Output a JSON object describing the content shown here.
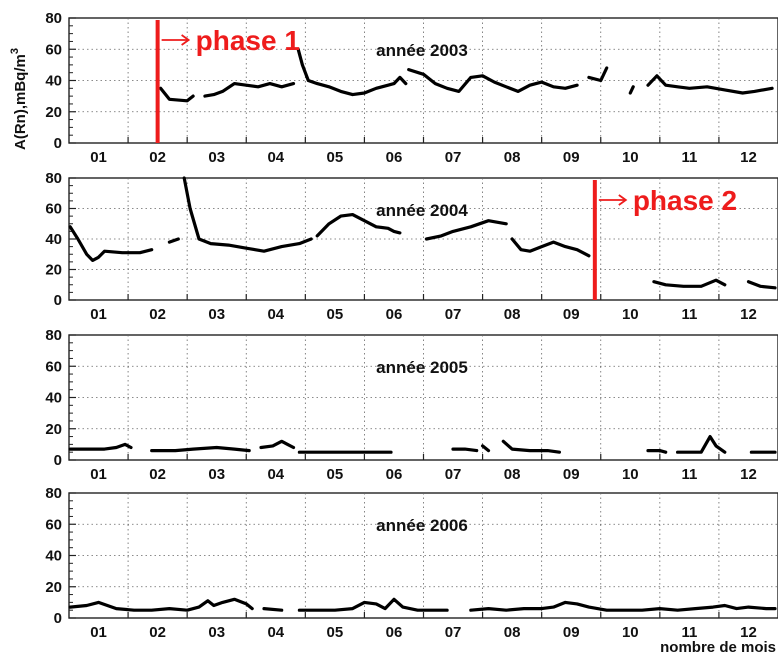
{
  "figure": {
    "ylabel": "A(Rn),mBq/m",
    "ylabel_sup": "3",
    "xlabel": "nombre de mois",
    "colors": {
      "data": "#000000",
      "phase": "#ee1c1c",
      "grid": "#666666",
      "text": "#111111"
    }
  },
  "chart_data": [
    {
      "type": "line",
      "title": "année 2003",
      "ylabel": "A(Rn),mBq/m3",
      "ylim": [
        0,
        80
      ],
      "yticks": [
        0,
        20,
        40,
        60,
        80
      ],
      "xlim": [
        0.5,
        12.5
      ],
      "categories": [
        "01",
        "02",
        "03",
        "04",
        "05",
        "06",
        "07",
        "08",
        "09",
        "10",
        "11",
        "12"
      ],
      "grid": true,
      "marker": {
        "label": "phase  1",
        "month": 2.0
      },
      "series": [
        {
          "values": [
            [
              2.05,
              35
            ],
            [
              2.2,
              28
            ],
            [
              2.5,
              27
            ],
            [
              2.6,
              30
            ]
          ]
        },
        {
          "values": [
            [
              2.8,
              30
            ],
            [
              2.95,
              31
            ],
            [
              3.1,
              33
            ],
            [
              3.3,
              38
            ],
            [
              3.5,
              37
            ],
            [
              3.7,
              36
            ],
            [
              3.9,
              38
            ],
            [
              4.1,
              36
            ],
            [
              4.3,
              38
            ]
          ]
        },
        {
          "values": [
            [
              4.38,
              60
            ],
            [
              4.45,
              50
            ],
            [
              4.55,
              40
            ],
            [
              4.7,
              38
            ],
            [
              4.9,
              36
            ],
            [
              5.1,
              33
            ],
            [
              5.3,
              31
            ],
            [
              5.5,
              32
            ],
            [
              5.7,
              35
            ],
            [
              5.9,
              37
            ],
            [
              6.0,
              38
            ],
            [
              6.1,
              42
            ],
            [
              6.2,
              38
            ]
          ]
        },
        {
          "values": [
            [
              6.25,
              47
            ],
            [
              6.5,
              44
            ],
            [
              6.7,
              38
            ],
            [
              6.9,
              35
            ],
            [
              7.1,
              33
            ],
            [
              7.3,
              42
            ],
            [
              7.5,
              43
            ],
            [
              7.7,
              39
            ],
            [
              7.9,
              36
            ],
            [
              8.1,
              33
            ],
            [
              8.3,
              37
            ],
            [
              8.5,
              39
            ],
            [
              8.7,
              36
            ],
            [
              8.9,
              35
            ],
            [
              9.1,
              37
            ]
          ]
        },
        {
          "values": [
            [
              9.3,
              42
            ],
            [
              9.5,
              40
            ],
            [
              9.6,
              48
            ]
          ]
        },
        {
          "values": [
            [
              10.0,
              32
            ],
            [
              10.05,
              36
            ]
          ]
        },
        {
          "values": [
            [
              10.3,
              37
            ],
            [
              10.45,
              43
            ],
            [
              10.6,
              37
            ],
            [
              10.8,
              36
            ],
            [
              11.0,
              35
            ],
            [
              11.3,
              36
            ],
            [
              11.6,
              34
            ],
            [
              11.9,
              32
            ],
            [
              12.1,
              33
            ],
            [
              12.4,
              35
            ]
          ]
        }
      ]
    },
    {
      "type": "line",
      "title": "année 2004",
      "ylabel": "A(Rn),mBq/m3",
      "ylim": [
        0,
        80
      ],
      "yticks": [
        0,
        20,
        40,
        60,
        80
      ],
      "xlim": [
        0.5,
        12.5
      ],
      "categories": [
        "01",
        "02",
        "03",
        "04",
        "05",
        "06",
        "07",
        "08",
        "09",
        "10",
        "11",
        "12"
      ],
      "grid": true,
      "marker": {
        "label": "phase  2",
        "month": 9.4
      },
      "series": [
        {
          "values": [
            [
              0.52,
              48
            ],
            [
              0.65,
              40
            ],
            [
              0.8,
              30
            ],
            [
              0.9,
              26
            ],
            [
              1.0,
              28
            ],
            [
              1.1,
              32
            ],
            [
              1.4,
              31
            ],
            [
              1.7,
              31
            ],
            [
              1.9,
              33
            ]
          ]
        },
        {
          "values": [
            [
              2.2,
              38
            ],
            [
              2.35,
              40
            ]
          ]
        },
        {
          "values": [
            [
              2.45,
              80
            ],
            [
              2.55,
              60
            ],
            [
              2.7,
              40
            ],
            [
              2.9,
              37
            ],
            [
              3.2,
              36
            ],
            [
              3.5,
              34
            ],
            [
              3.8,
              32
            ],
            [
              4.1,
              35
            ],
            [
              4.4,
              37
            ],
            [
              4.6,
              40
            ]
          ]
        },
        {
          "values": [
            [
              4.7,
              42
            ],
            [
              4.9,
              50
            ],
            [
              5.1,
              55
            ],
            [
              5.3,
              56
            ],
            [
              5.5,
              52
            ],
            [
              5.7,
              48
            ],
            [
              5.9,
              47
            ],
            [
              6.0,
              45
            ],
            [
              6.1,
              44
            ]
          ]
        },
        {
          "values": [
            [
              6.55,
              40
            ],
            [
              6.8,
              42
            ],
            [
              7.0,
              45
            ],
            [
              7.3,
              48
            ],
            [
              7.6,
              52
            ],
            [
              7.9,
              50
            ]
          ]
        },
        {
          "values": [
            [
              8.0,
              40
            ],
            [
              8.15,
              33
            ],
            [
              8.3,
              32
            ],
            [
              8.5,
              35
            ],
            [
              8.7,
              38
            ],
            [
              8.9,
              35
            ],
            [
              9.1,
              33
            ],
            [
              9.3,
              29
            ]
          ]
        },
        {
          "values": [
            [
              10.4,
              12
            ],
            [
              10.6,
              10
            ],
            [
              10.9,
              9
            ],
            [
              11.2,
              9
            ],
            [
              11.45,
              13
            ],
            [
              11.6,
              10
            ]
          ]
        },
        {
          "values": [
            [
              12.0,
              12
            ],
            [
              12.2,
              9
            ],
            [
              12.45,
              8
            ]
          ]
        }
      ]
    },
    {
      "type": "line",
      "title": "année 2005",
      "ylabel": "A(Rn),mBq/m3",
      "ylim": [
        0,
        80
      ],
      "yticks": [
        0,
        20,
        40,
        60,
        80
      ],
      "xlim": [
        0.5,
        12.5
      ],
      "categories": [
        "01",
        "02",
        "03",
        "04",
        "05",
        "06",
        "07",
        "08",
        "09",
        "10",
        "11",
        "12"
      ],
      "grid": true,
      "series": [
        {
          "values": [
            [
              0.52,
              7
            ],
            [
              0.8,
              7
            ],
            [
              1.1,
              7
            ],
            [
              1.3,
              8
            ],
            [
              1.45,
              10
            ],
            [
              1.55,
              8
            ]
          ]
        },
        {
          "values": [
            [
              1.9,
              6
            ],
            [
              2.3,
              6
            ],
            [
              2.6,
              7
            ],
            [
              3.0,
              8
            ],
            [
              3.3,
              7
            ],
            [
              3.55,
              6
            ]
          ]
        },
        {
          "values": [
            [
              3.75,
              8
            ],
            [
              3.95,
              9
            ],
            [
              4.1,
              12
            ],
            [
              4.2,
              10
            ],
            [
              4.3,
              8
            ]
          ]
        },
        {
          "values": [
            [
              4.4,
              5
            ],
            [
              4.8,
              5
            ],
            [
              5.2,
              5
            ],
            [
              5.6,
              5
            ],
            [
              5.95,
              5
            ]
          ]
        },
        {
          "values": [
            [
              7.0,
              7
            ],
            [
              7.2,
              7
            ],
            [
              7.4,
              6
            ]
          ]
        },
        {
          "values": [
            [
              7.5,
              9
            ],
            [
              7.6,
              6
            ]
          ]
        },
        {
          "values": [
            [
              7.85,
              12
            ],
            [
              8.0,
              7
            ],
            [
              8.3,
              6
            ],
            [
              8.6,
              6
            ],
            [
              8.8,
              5
            ]
          ]
        },
        {
          "values": [
            [
              10.3,
              6
            ],
            [
              10.5,
              6
            ],
            [
              10.6,
              5
            ]
          ]
        },
        {
          "values": [
            [
              10.8,
              5
            ],
            [
              11.0,
              5
            ],
            [
              11.2,
              5
            ],
            [
              11.35,
              15
            ],
            [
              11.45,
              9
            ],
            [
              11.6,
              5
            ]
          ]
        },
        {
          "values": [
            [
              12.05,
              5
            ],
            [
              12.3,
              5
            ],
            [
              12.45,
              5
            ]
          ]
        }
      ]
    },
    {
      "type": "line",
      "title": "année 2006",
      "ylabel": "A(Rn),mBq/m3",
      "ylim": [
        0,
        80
      ],
      "yticks": [
        0,
        20,
        40,
        60,
        80
      ],
      "xlim": [
        0.5,
        12.5
      ],
      "categories": [
        "01",
        "02",
        "03",
        "04",
        "05",
        "06",
        "07",
        "08",
        "09",
        "10",
        "11",
        "12"
      ],
      "grid": true,
      "series": [
        {
          "values": [
            [
              0.52,
              7
            ],
            [
              0.8,
              8
            ],
            [
              1.0,
              10
            ],
            [
              1.15,
              8
            ],
            [
              1.3,
              6
            ],
            [
              1.6,
              5
            ],
            [
              1.9,
              5
            ],
            [
              2.2,
              6
            ],
            [
              2.5,
              5
            ],
            [
              2.7,
              7
            ],
            [
              2.85,
              11
            ],
            [
              2.95,
              8
            ],
            [
              3.1,
              10
            ],
            [
              3.3,
              12
            ],
            [
              3.5,
              9
            ],
            [
              3.6,
              6
            ]
          ]
        },
        {
          "values": [
            [
              3.8,
              6
            ],
            [
              4.1,
              5
            ]
          ]
        },
        {
          "values": [
            [
              4.4,
              5
            ],
            [
              4.7,
              5
            ],
            [
              5.0,
              5
            ],
            [
              5.3,
              6
            ],
            [
              5.5,
              10
            ],
            [
              5.7,
              9
            ],
            [
              5.85,
              6
            ],
            [
              6.0,
              12
            ],
            [
              6.15,
              7
            ],
            [
              6.4,
              5
            ],
            [
              6.7,
              5
            ],
            [
              6.9,
              5
            ]
          ]
        },
        {
          "values": [
            [
              7.3,
              5
            ],
            [
              7.6,
              6
            ],
            [
              7.9,
              5
            ],
            [
              8.2,
              6
            ],
            [
              8.5,
              6
            ],
            [
              8.7,
              7
            ],
            [
              8.9,
              10
            ],
            [
              9.1,
              9
            ],
            [
              9.3,
              7
            ],
            [
              9.6,
              5
            ],
            [
              9.9,
              5
            ],
            [
              10.2,
              5
            ],
            [
              10.5,
              6
            ],
            [
              10.8,
              5
            ],
            [
              11.1,
              6
            ],
            [
              11.4,
              7
            ],
            [
              11.6,
              8
            ],
            [
              11.8,
              6
            ],
            [
              12.0,
              7
            ],
            [
              12.3,
              6
            ],
            [
              12.45,
              6
            ]
          ]
        }
      ]
    }
  ]
}
